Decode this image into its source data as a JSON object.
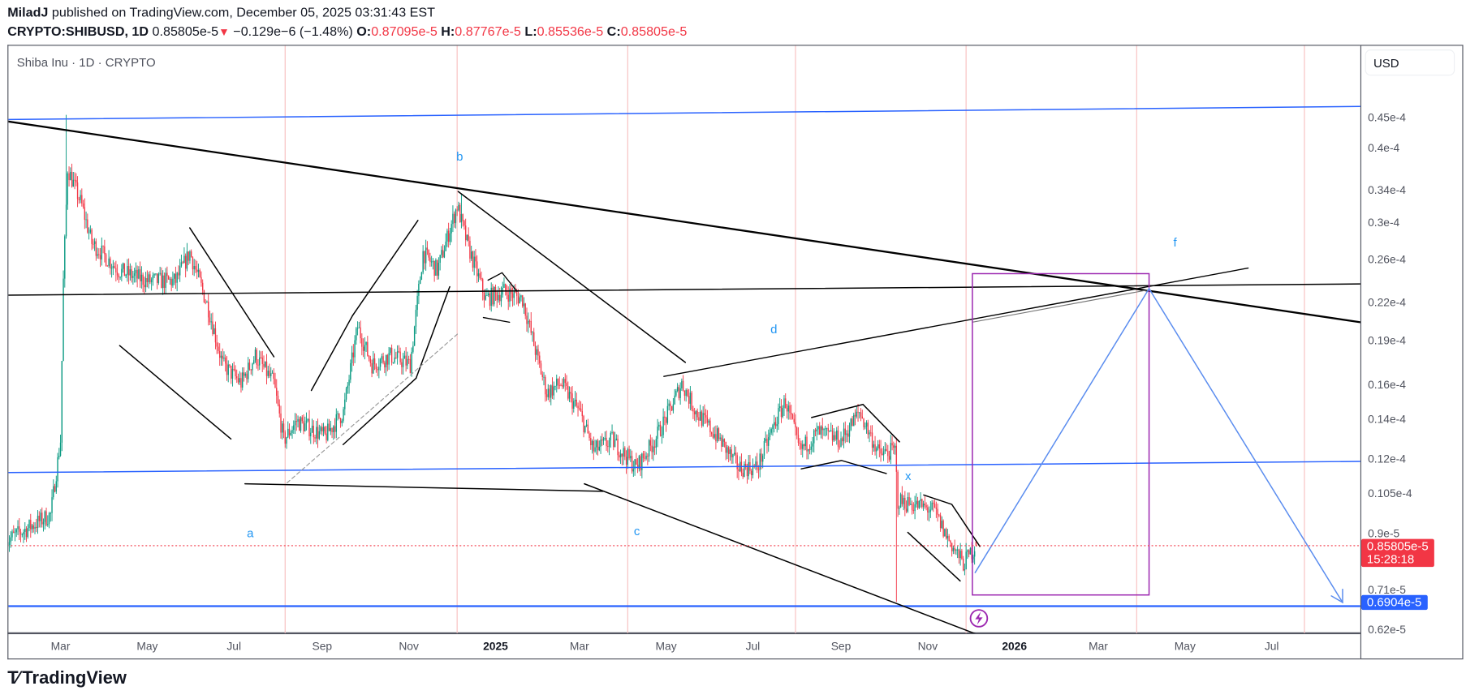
{
  "header": {
    "publisher": "MiladJ",
    "published_text": "published on TradingView.com, December 05, 2025 03:31:43 EST",
    "symbol": "CRYPTO:SHIBUSD, 1D",
    "last": "0.85805e-5",
    "change": "−0.129e−6 (−1.48%)",
    "o_label": "O:",
    "o_value": "0.87095e-5",
    "h_label": "H:",
    "h_value": "0.87767e-5",
    "l_label": "L:",
    "l_value": "0.85536e-5",
    "c_label": "C:",
    "c_value": "0.85805e-5"
  },
  "legend_title": "Shiba Inu · 1D · CRYPTO",
  "currency": "USD",
  "price_axis": {
    "last_price_label": "0.85805e-5",
    "countdown": "15:28:18",
    "level_label": "0.6904e-5"
  },
  "logo": "TradingView",
  "colors": {
    "up": "#089981",
    "down": "#f23645",
    "drawing_blue": "#2962ff",
    "projection_blue": "#5b8def",
    "box_purple": "#9c27b0",
    "separator": "#f8c0c0"
  },
  "chart_data": {
    "type": "candlestick",
    "y_scale": "log",
    "ylim": [
      6e-06,
      5e-05
    ],
    "grid": false,
    "y_ticks": [
      {
        "value": 4.5e-05,
        "label": "0.45e-4"
      },
      {
        "value": 4e-05,
        "label": "0.4e-4"
      },
      {
        "value": 3.4e-05,
        "label": "0.34e-4"
      },
      {
        "value": 3e-05,
        "label": "0.3e-4"
      },
      {
        "value": 2.6e-05,
        "label": "0.26e-4"
      },
      {
        "value": 2.2e-05,
        "label": "0.22e-4"
      },
      {
        "value": 1.9e-05,
        "label": "0.19e-4"
      },
      {
        "value": 1.6e-05,
        "label": "0.16e-4"
      },
      {
        "value": 1.4e-05,
        "label": "0.14e-4"
      },
      {
        "value": 1.2e-05,
        "label": "0.12e-4"
      },
      {
        "value": 1.05e-05,
        "label": "0.105e-4"
      },
      {
        "value": 9e-06,
        "label": "0.9e-5"
      },
      {
        "value": 7.1e-06,
        "label": "0.71e-5"
      },
      {
        "value": 6.2e-06,
        "label": "0.62e-5"
      }
    ],
    "x_ticks": [
      {
        "date": "2024-03-01",
        "label": "Mar",
        "bold": false
      },
      {
        "date": "2024-05-01",
        "label": "May",
        "bold": false
      },
      {
        "date": "2024-07-01",
        "label": "Jul",
        "bold": false
      },
      {
        "date": "2024-09-01",
        "label": "Sep",
        "bold": false
      },
      {
        "date": "2024-11-01",
        "label": "Nov",
        "bold": false
      },
      {
        "date": "2025-01-01",
        "label": "2025",
        "bold": true
      },
      {
        "date": "2025-03-01",
        "label": "Mar",
        "bold": false
      },
      {
        "date": "2025-05-01",
        "label": "May",
        "bold": false
      },
      {
        "date": "2025-07-01",
        "label": "Jul",
        "bold": false
      },
      {
        "date": "2025-09-01",
        "label": "Sep",
        "bold": false
      },
      {
        "date": "2025-11-01",
        "label": "Nov",
        "bold": false
      },
      {
        "date": "2026-01-01",
        "label": "2026",
        "bold": true
      },
      {
        "date": "2026-03-01",
        "label": "Mar",
        "bold": false
      },
      {
        "date": "2026-05-01",
        "label": "May",
        "bold": false
      },
      {
        "date": "2026-07-01",
        "label": "Jul",
        "bold": false
      }
    ],
    "close_path": [
      [
        "2024-01-23",
        8.75e-06
      ],
      [
        "2024-02-23",
        9.67e-06
      ],
      [
        "2024-03-01",
        1.29e-05
      ],
      [
        "2024-03-03",
        2.39e-05
      ],
      [
        "2024-03-06",
        3.7e-05
      ],
      [
        "2024-03-16",
        3.2e-05
      ],
      [
        "2024-03-23",
        2.77e-05
      ],
      [
        "2024-04-11",
        2.49e-05
      ],
      [
        "2024-05-01",
        2.39e-05
      ],
      [
        "2024-05-21",
        2.39e-05
      ],
      [
        "2024-05-31",
        2.67e-05
      ],
      [
        "2024-06-13",
        2.15e-05
      ],
      [
        "2024-06-23",
        1.73e-05
      ],
      [
        "2024-07-06",
        1.61e-05
      ],
      [
        "2024-07-16",
        1.79e-05
      ],
      [
        "2024-07-29",
        1.61e-05
      ],
      [
        "2024-08-05",
        1.29e-05
      ],
      [
        "2024-08-14",
        1.39e-05
      ],
      [
        "2024-09-03",
        1.31e-05
      ],
      [
        "2024-09-16",
        1.44e-05
      ],
      [
        "2024-09-26",
        2e-05
      ],
      [
        "2024-10-06",
        1.73e-05
      ],
      [
        "2024-10-19",
        1.79e-05
      ],
      [
        "2024-11-02",
        1.73e-05
      ],
      [
        "2024-11-11",
        2.67e-05
      ],
      [
        "2024-11-21",
        2.49e-05
      ],
      [
        "2024-12-05",
        3.2e-05
      ],
      [
        "2024-12-12",
        2.77e-05
      ],
      [
        "2024-12-25",
        2.23e-05
      ],
      [
        "2025-01-07",
        2.3e-05
      ],
      [
        "2025-01-20",
        2.23e-05
      ],
      [
        "2025-01-30",
        1.79e-05
      ],
      [
        "2025-02-06",
        1.55e-05
      ],
      [
        "2025-02-16",
        1.61e-05
      ],
      [
        "2025-03-01",
        1.44e-05
      ],
      [
        "2025-03-11",
        1.24e-05
      ],
      [
        "2025-03-24",
        1.29e-05
      ],
      [
        "2025-04-10",
        1.16e-05
      ],
      [
        "2025-04-23",
        1.29e-05
      ],
      [
        "2025-05-03",
        1.44e-05
      ],
      [
        "2025-05-12",
        1.61e-05
      ],
      [
        "2025-05-22",
        1.44e-05
      ],
      [
        "2025-06-08",
        1.29e-05
      ],
      [
        "2025-06-21",
        1.16e-05
      ],
      [
        "2025-07-04",
        1.16e-05
      ],
      [
        "2025-07-17",
        1.39e-05
      ],
      [
        "2025-07-24",
        1.5e-05
      ],
      [
        "2025-08-03",
        1.24e-05
      ],
      [
        "2025-08-16",
        1.33e-05
      ],
      [
        "2025-09-01",
        1.29e-05
      ],
      [
        "2025-09-14",
        1.44e-05
      ],
      [
        "2025-09-28",
        1.22e-05
      ],
      [
        "2025-10-09",
        1.24e-05
      ],
      [
        "2025-10-11",
        1.02e-05
      ],
      [
        "2025-10-27",
        1e-05
      ],
      [
        "2025-11-06",
        9.8e-06
      ],
      [
        "2025-11-13",
        9e-06
      ],
      [
        "2025-11-26",
        8e-06
      ],
      [
        "2025-12-05",
        8.5805e-06
      ]
    ],
    "wick_extremes": [
      {
        "date": "2024-03-05",
        "high": 4.55e-05
      },
      {
        "date": "2024-12-08",
        "high": 3.35e-05
      },
      {
        "date": "2025-10-10",
        "low": 6.9e-06
      }
    ],
    "last_candle": {
      "date": "2025-12-05",
      "open": 8.7095e-06,
      "high": 8.7767e-06,
      "low": 8.5536e-06,
      "close": 8.5805e-06
    },
    "last_price": 8.5805e-06,
    "level": 6.904e-06,
    "vertical_markers": [
      "2024-08-06",
      "2024-12-05",
      "2025-04-04",
      "2025-07-31",
      "2025-11-28",
      "2026-03-28",
      "2026-07-24"
    ],
    "wave_labels": {
      "a": "a",
      "b": "b",
      "c": "c",
      "d": "d",
      "x": "x",
      "f": "f"
    }
  }
}
